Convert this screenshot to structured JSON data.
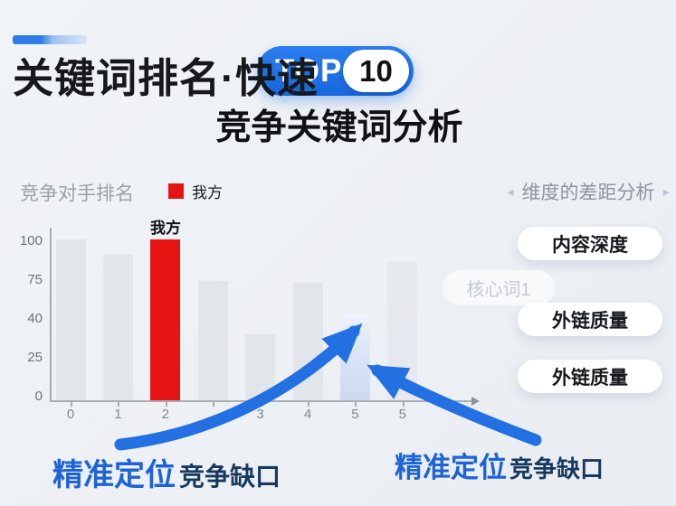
{
  "header": {
    "title": "关键词排名·快速",
    "badge": {
      "top": "TOP",
      "number": "10"
    },
    "subtitle": "竞争关键词分析"
  },
  "chart": {
    "header": "竞争对手排名",
    "legend": {
      "label": "我方",
      "color": "#e81414"
    },
    "bar_annotation": "我方"
  },
  "chart_data": {
    "type": "bar",
    "title": "竞争对手排名",
    "categories": [
      "0",
      "1",
      "2",
      "",
      "3",
      "4",
      "5",
      "5"
    ],
    "values": [
      100,
      91,
      100,
      74,
      41,
      73,
      54,
      86
    ],
    "series_roles": [
      "competitor",
      "competitor",
      "ours",
      "competitor",
      "competitor",
      "competitor",
      "gap",
      "ghost"
    ],
    "yticks": [
      "100",
      "75",
      "40",
      "25",
      "0"
    ],
    "ylim": [
      0,
      104
    ],
    "xlabel": "",
    "ylabel": "",
    "grid": false,
    "legend": [
      {
        "label": "我方",
        "color": "#e81414"
      }
    ],
    "annotations": [
      {
        "text": "我方",
        "bar_index": 2
      }
    ],
    "bar_colors": {
      "competitor": "#e2e5e9",
      "ours": "#e81414",
      "gap": "#dde7f8",
      "ghost": "#dde1e7"
    }
  },
  "right_panel": {
    "chevron_left": "◂",
    "header": "维度的差距分析",
    "chevron_right": "▸",
    "ghost_tag": "核心词1",
    "tags": [
      "内容深度",
      "外链质量",
      "外链质量"
    ]
  },
  "callouts": {
    "left": {
      "strong": "精准定位",
      "normal": "竞争缺口"
    },
    "right": {
      "strong": "精准定位",
      "normal": "竞争缺口"
    }
  },
  "colors": {
    "accent_blue": "#1f6fe0",
    "badge_blue": "#1a6fe3",
    "our_red": "#e81414",
    "dark_navy": "#17395f",
    "background": "#edf0f4"
  }
}
